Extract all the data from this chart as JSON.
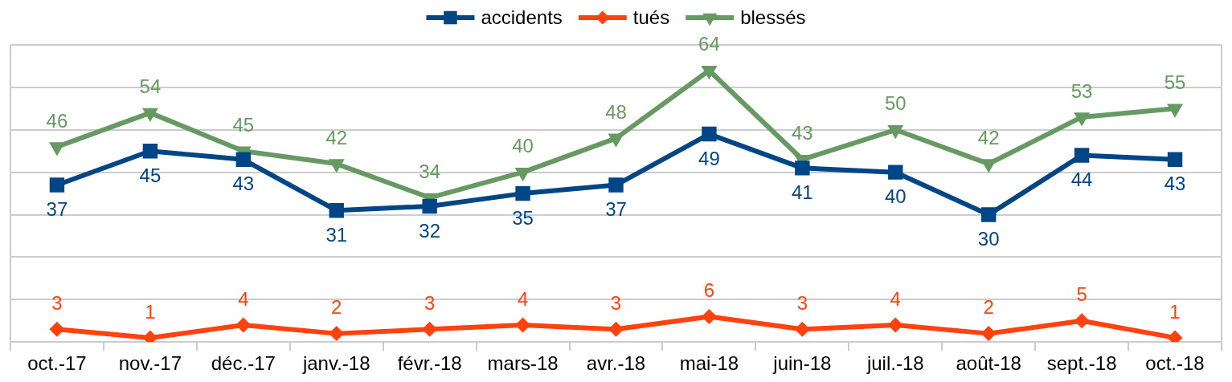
{
  "chart_data": {
    "type": "line",
    "categories": [
      "oct.-17",
      "nov.-17",
      "déc.-17",
      "janv.-18",
      "févr.-18",
      "mars-18",
      "avr.-18",
      "mai-18",
      "juin-18",
      "juil.-18",
      "août-18",
      "sept.-18",
      "oct.-18"
    ],
    "series": [
      {
        "name": "accidents",
        "color": "#004586",
        "marker": "square",
        "values": [
          37,
          45,
          43,
          31,
          32,
          35,
          37,
          49,
          41,
          40,
          30,
          44,
          43
        ]
      },
      {
        "name": "tués",
        "color": "#ff420e",
        "marker": "diamond",
        "values": [
          3,
          1,
          4,
          2,
          3,
          4,
          3,
          6,
          3,
          4,
          2,
          5,
          1
        ]
      },
      {
        "name": "blessés",
        "color": "#669a62",
        "marker": "triangle",
        "values": [
          46,
          54,
          45,
          42,
          34,
          40,
          48,
          64,
          43,
          50,
          42,
          53,
          55
        ]
      }
    ],
    "ylim": [
      0,
      70
    ],
    "yticks": [
      {
        "value": 0,
        "label": null
      },
      {
        "value": 10,
        "label": null
      },
      {
        "value": 20,
        "label": null
      },
      {
        "value": 30,
        "label": null
      },
      {
        "value": 40,
        "label": null
      },
      {
        "value": 50,
        "label": null
      },
      {
        "value": 60,
        "label": null
      },
      {
        "value": 70,
        "label": null
      }
    ],
    "tick_labels": "x",
    "grid": "y",
    "legend": "top",
    "data_labels": true,
    "line_style": "solid"
  }
}
